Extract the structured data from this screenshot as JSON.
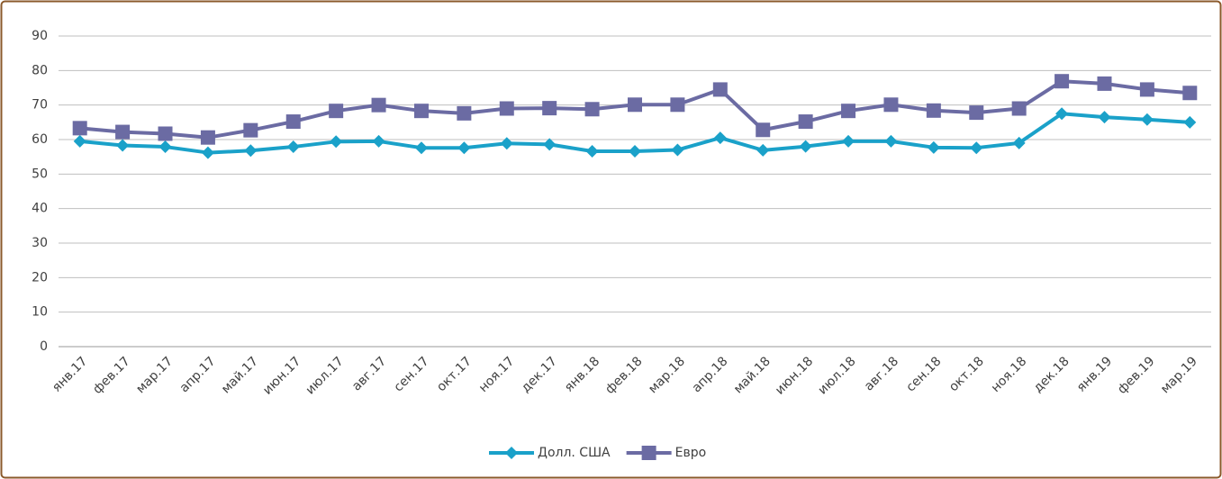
{
  "chart_data": {
    "type": "line",
    "categories": [
      "янв.17",
      "фев.17",
      "мар.17",
      "апр.17",
      "май.17",
      "июн.17",
      "июл.17",
      "авг.17",
      "сен.17",
      "окт.17",
      "ноя.17",
      "дек.17",
      "янв.18",
      "фев.18",
      "мар.18",
      "апр.18",
      "май.18",
      "июн.18",
      "июл.18",
      "авг.18",
      "сен.18",
      "окт.18",
      "ноя.18",
      "дек.18",
      "янв.19",
      "фев.19",
      "мар.19"
    ],
    "series": [
      {
        "name": "Долл. США",
        "color": "#1aa1c9",
        "marker": "diamond",
        "values": [
          59.5,
          58.3,
          57.9,
          56.2,
          56.8,
          57.9,
          59.4,
          59.5,
          57.6,
          57.6,
          58.9,
          58.6,
          56.6,
          56.6,
          57,
          60.5,
          56.9,
          58,
          59.5,
          59.5,
          57.7,
          57.6,
          59,
          67.5,
          66.5,
          65.8,
          65
        ]
      },
      {
        "name": "Евро",
        "color": "#6b6ba3",
        "marker": "square",
        "values": [
          63.3,
          62.2,
          61.7,
          60.6,
          62.7,
          65.2,
          68.3,
          70,
          68.3,
          67.6,
          69,
          69.1,
          68.8,
          70.1,
          70.1,
          74.5,
          62.8,
          65.2,
          68.3,
          70.1,
          68.4,
          67.8,
          69,
          76.9,
          76.2,
          74.5,
          73.5
        ]
      }
    ],
    "ylim": [
      0,
      90
    ],
    "yticks": [
      0,
      10,
      20,
      30,
      40,
      50,
      60,
      70,
      80,
      90
    ],
    "grid": true,
    "legend": "bottom"
  }
}
